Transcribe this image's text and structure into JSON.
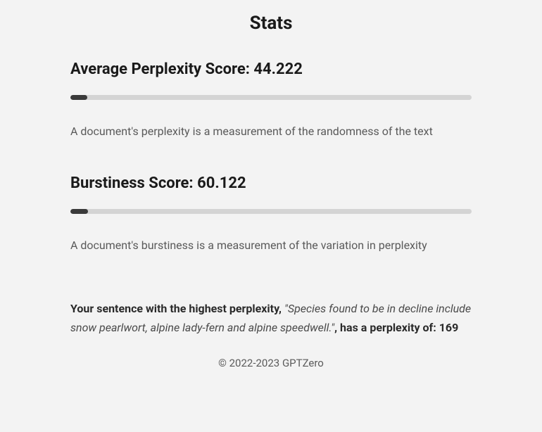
{
  "page": {
    "title": "Stats"
  },
  "metrics": {
    "perplexity": {
      "label_prefix": "Average Perplexity Score: ",
      "value": "44.222",
      "progress_percent": 4.2,
      "description": "A document's perplexity is a measurement of the randomness of the text"
    },
    "burstiness": {
      "label_prefix": "Burstiness Score: ",
      "value": "60.122",
      "progress_percent": 4.4,
      "description": "A document's burstiness is a measurement of the variation in perplexity"
    }
  },
  "highlight": {
    "lead": "Your sentence with the highest perplexity, ",
    "quote": "\"Species found to be in decline include snow pearlwort, alpine lady-fern and alpine speedwell.\"",
    "mid": ", has a perplexity of: ",
    "score": "169"
  },
  "footer": {
    "copyright": "© 2022-2023 GPTZero"
  },
  "colors": {
    "background": "#f3f3f3",
    "progress_track": "#d4d4d4",
    "progress_fill": "#3a3a3a",
    "text_primary": "#1a1a1a",
    "text_muted": "#5a5a5a"
  }
}
